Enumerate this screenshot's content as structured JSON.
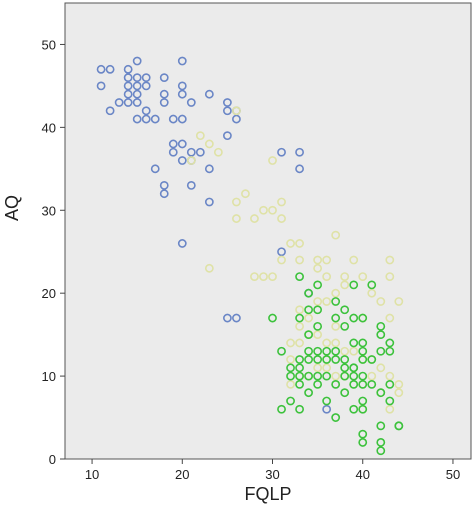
{
  "chart_data": {
    "type": "scatter",
    "xlabel": "FQLP",
    "ylabel": "AQ",
    "xlim": [
      7,
      52
    ],
    "ylim": [
      0,
      55
    ],
    "xticks": [
      10,
      20,
      30,
      40,
      50
    ],
    "yticks": [
      0,
      10,
      20,
      30,
      40,
      50
    ],
    "grid": false,
    "plot_background": "#ebebeb",
    "marker": "open-circle",
    "series": [
      {
        "color": "#6a86c6",
        "points": [
          [
            11,
            47
          ],
          [
            12,
            47
          ],
          [
            11,
            45
          ],
          [
            15,
            48
          ],
          [
            14,
            47
          ],
          [
            14,
            46
          ],
          [
            15,
            46
          ],
          [
            16,
            46
          ],
          [
            14,
            45
          ],
          [
            16,
            45
          ],
          [
            15,
            45
          ],
          [
            14,
            44
          ],
          [
            15,
            44
          ],
          [
            13,
            43
          ],
          [
            14,
            43
          ],
          [
            15,
            43
          ],
          [
            16,
            42
          ],
          [
            17,
            41
          ],
          [
            16,
            41
          ],
          [
            12,
            42
          ],
          [
            15,
            41
          ],
          [
            18,
            46
          ],
          [
            20,
            48
          ],
          [
            20,
            45
          ],
          [
            18,
            44
          ],
          [
            20,
            44
          ],
          [
            21,
            43
          ],
          [
            18,
            43
          ],
          [
            20,
            41
          ],
          [
            19,
            41
          ],
          [
            23,
            44
          ],
          [
            25,
            43
          ],
          [
            25,
            42
          ],
          [
            26,
            42
          ],
          [
            26,
            41
          ],
          [
            25,
            39
          ],
          [
            20,
            38
          ],
          [
            19,
            38
          ],
          [
            19,
            37
          ],
          [
            21,
            37
          ],
          [
            22,
            37
          ],
          [
            21,
            36
          ],
          [
            20,
            36
          ],
          [
            23,
            35
          ],
          [
            17,
            35
          ],
          [
            21,
            33
          ],
          [
            18,
            33
          ],
          [
            18,
            32
          ],
          [
            23,
            31
          ],
          [
            31,
            37
          ],
          [
            33,
            37
          ],
          [
            33,
            35
          ],
          [
            31,
            25
          ],
          [
            20,
            26
          ],
          [
            25,
            17
          ],
          [
            26,
            17
          ],
          [
            34,
            20
          ],
          [
            36,
            6
          ]
        ]
      },
      {
        "color": "#dfe2a6",
        "points": [
          [
            26,
            42
          ],
          [
            22,
            39
          ],
          [
            23,
            38
          ],
          [
            24,
            37
          ],
          [
            21,
            36
          ],
          [
            30,
            36
          ],
          [
            27,
            32
          ],
          [
            26,
            31
          ],
          [
            31,
            31
          ],
          [
            30,
            30
          ],
          [
            29,
            30
          ],
          [
            28,
            29
          ],
          [
            26,
            29
          ],
          [
            31,
            29
          ],
          [
            23,
            23
          ],
          [
            29,
            22
          ],
          [
            30,
            22
          ],
          [
            28,
            22
          ],
          [
            33,
            26
          ],
          [
            32,
            26
          ],
          [
            31,
            24
          ],
          [
            33,
            24
          ],
          [
            35,
            24
          ],
          [
            36,
            24
          ],
          [
            37,
            27
          ],
          [
            36,
            22
          ],
          [
            35,
            23
          ],
          [
            38,
            22
          ],
          [
            40,
            22
          ],
          [
            43,
            24
          ],
          [
            43,
            22
          ],
          [
            41,
            20
          ],
          [
            42,
            19
          ],
          [
            44,
            19
          ],
          [
            37,
            20
          ],
          [
            35,
            19
          ],
          [
            36,
            19
          ],
          [
            33,
            18
          ],
          [
            33,
            16
          ],
          [
            34,
            15
          ],
          [
            35,
            15
          ],
          [
            36,
            14
          ],
          [
            37,
            14
          ],
          [
            38,
            13
          ],
          [
            39,
            13
          ],
          [
            40,
            12
          ],
          [
            41,
            12
          ],
          [
            42,
            11
          ],
          [
            43,
            10
          ],
          [
            44,
            9
          ],
          [
            44,
            8
          ],
          [
            40,
            9
          ],
          [
            39,
            9
          ],
          [
            38,
            10
          ],
          [
            37,
            10
          ],
          [
            36,
            11
          ],
          [
            35,
            11
          ],
          [
            34,
            10
          ],
          [
            33,
            10
          ],
          [
            32,
            9
          ],
          [
            32,
            12
          ],
          [
            32,
            14
          ],
          [
            33,
            14
          ],
          [
            37,
            16
          ],
          [
            40,
            17
          ],
          [
            43,
            17
          ],
          [
            39,
            24
          ],
          [
            38,
            21
          ],
          [
            36,
            12
          ],
          [
            41,
            10
          ],
          [
            42,
            8
          ],
          [
            40,
            6
          ],
          [
            43,
            6
          ],
          [
            37,
            9
          ],
          [
            34,
            17
          ]
        ]
      },
      {
        "color": "#3cc23c",
        "points": [
          [
            33,
            22
          ],
          [
            35,
            21
          ],
          [
            34,
            20
          ],
          [
            39,
            21
          ],
          [
            41,
            21
          ],
          [
            37,
            19
          ],
          [
            38,
            18
          ],
          [
            35,
            18
          ],
          [
            34,
            18
          ],
          [
            39,
            17
          ],
          [
            33,
            17
          ],
          [
            40,
            17
          ],
          [
            37,
            17
          ],
          [
            30,
            17
          ],
          [
            35,
            16
          ],
          [
            34,
            15
          ],
          [
            38,
            16
          ],
          [
            39,
            14
          ],
          [
            37,
            13
          ],
          [
            36,
            13
          ],
          [
            35,
            13
          ],
          [
            34,
            13
          ],
          [
            34,
            12
          ],
          [
            35,
            12
          ],
          [
            36,
            12
          ],
          [
            37,
            12
          ],
          [
            38,
            12
          ],
          [
            33,
            12
          ],
          [
            32,
            11
          ],
          [
            33,
            11
          ],
          [
            39,
            11
          ],
          [
            40,
            12
          ],
          [
            41,
            12
          ],
          [
            42,
            16
          ],
          [
            42,
            15
          ],
          [
            43,
            14
          ],
          [
            42,
            13
          ],
          [
            43,
            13
          ],
          [
            40,
            13
          ],
          [
            40,
            14
          ],
          [
            38,
            11
          ],
          [
            39,
            11
          ],
          [
            40,
            10
          ],
          [
            39,
            10
          ],
          [
            38,
            10
          ],
          [
            36,
            10
          ],
          [
            35,
            10
          ],
          [
            33,
            10
          ],
          [
            34,
            10
          ],
          [
            32,
            10
          ],
          [
            31,
            13
          ],
          [
            33,
            9
          ],
          [
            35,
            9
          ],
          [
            37,
            9
          ],
          [
            39,
            9
          ],
          [
            40,
            9
          ],
          [
            41,
            9
          ],
          [
            43,
            9
          ],
          [
            42,
            8
          ],
          [
            38,
            8
          ],
          [
            34,
            8
          ],
          [
            32,
            7
          ],
          [
            36,
            7
          ],
          [
            40,
            7
          ],
          [
            43,
            7
          ],
          [
            40,
            6
          ],
          [
            39,
            6
          ],
          [
            37,
            5
          ],
          [
            42,
            4
          ],
          [
            44,
            4
          ],
          [
            40,
            3
          ],
          [
            40,
            2
          ],
          [
            42,
            2
          ],
          [
            42,
            1
          ],
          [
            31,
            6
          ],
          [
            33,
            6
          ],
          [
            44,
            4
          ]
        ]
      }
    ]
  }
}
